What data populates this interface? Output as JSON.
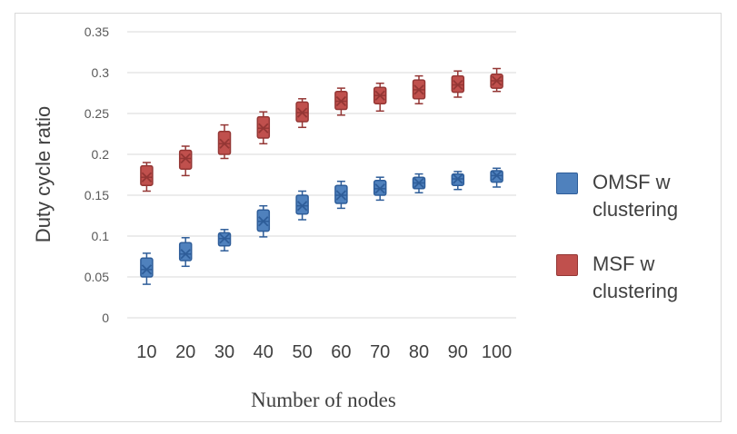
{
  "chart_data": {
    "type": "box",
    "title": "",
    "xlabel": "Number of nodes",
    "ylabel": "Duty cycle ratio",
    "ylim": [
      0,
      0.35
    ],
    "yticks": [
      "0",
      "0.05",
      "0.1",
      "0.15",
      "0.2",
      "0.25",
      "0.3",
      "0.35"
    ],
    "categories": [
      "10",
      "20",
      "30",
      "40",
      "50",
      "60",
      "70",
      "80",
      "90",
      "100"
    ],
    "grid": "horizontal",
    "legend_position": "right",
    "series": [
      {
        "name": "OMSF w clustering",
        "color": "#4f81bd",
        "stroke": "#2e5d99",
        "mean": [
          0.059,
          0.078,
          0.097,
          0.118,
          0.137,
          0.15,
          0.158,
          0.165,
          0.17,
          0.174
        ],
        "median": [
          0.059,
          0.078,
          0.097,
          0.118,
          0.137,
          0.15,
          0.158,
          0.165,
          0.17,
          0.174
        ],
        "q1": [
          0.05,
          0.07,
          0.088,
          0.106,
          0.127,
          0.14,
          0.15,
          0.158,
          0.162,
          0.166
        ],
        "q3": [
          0.073,
          0.092,
          0.104,
          0.132,
          0.15,
          0.162,
          0.168,
          0.172,
          0.176,
          0.18
        ],
        "min": [
          0.041,
          0.063,
          0.082,
          0.099,
          0.12,
          0.134,
          0.144,
          0.153,
          0.157,
          0.16
        ],
        "max": [
          0.079,
          0.098,
          0.108,
          0.137,
          0.155,
          0.167,
          0.172,
          0.176,
          0.179,
          0.183
        ]
      },
      {
        "name": "MSF w clustering",
        "color": "#c0504d",
        "stroke": "#943634",
        "mean": [
          0.172,
          0.195,
          0.213,
          0.232,
          0.251,
          0.265,
          0.272,
          0.279,
          0.285,
          0.29
        ],
        "median": [
          0.172,
          0.195,
          0.213,
          0.232,
          0.251,
          0.265,
          0.272,
          0.279,
          0.285,
          0.29
        ],
        "q1": [
          0.162,
          0.182,
          0.2,
          0.22,
          0.24,
          0.255,
          0.262,
          0.268,
          0.276,
          0.281
        ],
        "q3": [
          0.186,
          0.205,
          0.228,
          0.246,
          0.264,
          0.277,
          0.282,
          0.291,
          0.296,
          0.298
        ],
        "min": [
          0.155,
          0.174,
          0.195,
          0.213,
          0.233,
          0.248,
          0.253,
          0.262,
          0.27,
          0.277
        ],
        "max": [
          0.19,
          0.21,
          0.236,
          0.252,
          0.268,
          0.281,
          0.287,
          0.296,
          0.302,
          0.305
        ]
      }
    ]
  }
}
